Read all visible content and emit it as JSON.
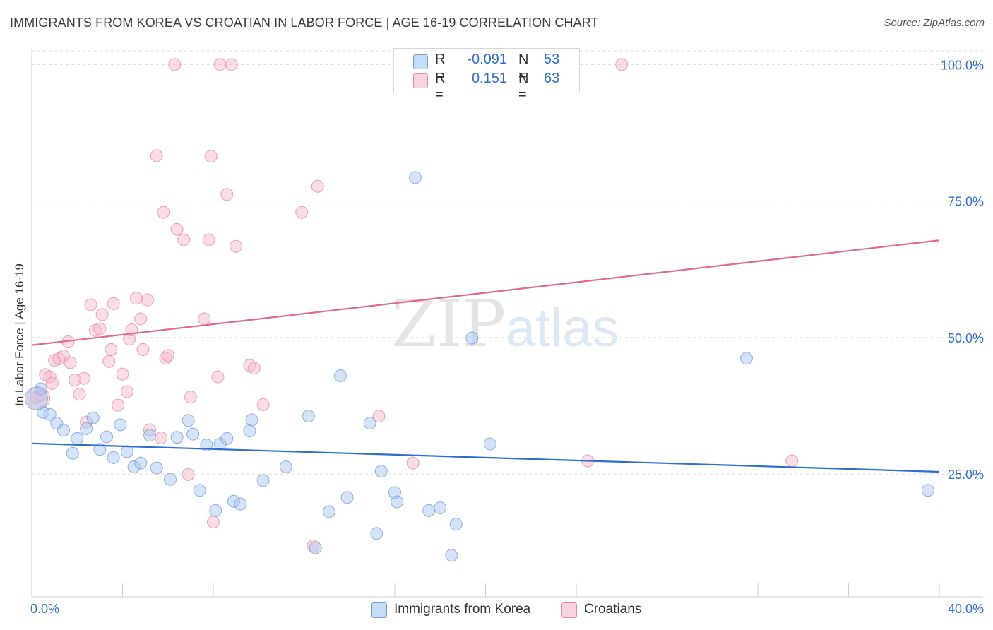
{
  "header": {
    "title": "IMMIGRANTS FROM KOREA VS CROATIAN IN LABOR FORCE | AGE 16-19 CORRELATION CHART",
    "source": "Source: ZipAtlas.com"
  },
  "watermark": {
    "part1": "ZIP",
    "part2": "atlas"
  },
  "stats": [
    {
      "r_label": "R =",
      "r_value": "-0.091",
      "n_label": "N =",
      "n_value": "53",
      "color": "#a9c8ef"
    },
    {
      "r_label": "R =",
      "r_value": "0.151",
      "n_label": "N =",
      "n_value": "63",
      "color": "#f5b9cb"
    }
  ],
  "legend": [
    {
      "label": "Immigrants from Korea",
      "color": "#a9c8ef"
    },
    {
      "label": "Croatians",
      "color": "#f5b9cb"
    }
  ],
  "chart_data": {
    "type": "scatter",
    "title": "IMMIGRANTS FROM KOREA VS CROATIAN IN LABOR FORCE | AGE 16-19 CORRELATION CHART",
    "xlabel": "",
    "ylabel": "In Labor Force | Age 16-19",
    "xlim": [
      0,
      40
    ],
    "ylim": [
      2.5,
      102.5
    ],
    "x_tick_labels": [
      "0.0%",
      "40.0%"
    ],
    "y_ticks": [
      25,
      50,
      75,
      100
    ],
    "y_tick_labels": [
      "25.0%",
      "50.0%",
      "75.0%",
      "100.0%"
    ],
    "grid": "horizontal dashed",
    "legend_position": "bottom",
    "colors": {
      "korea_fill": "#a9c8ef",
      "korea_stroke": "#6fa0dc",
      "korea_line": "#2c6fcf",
      "croatian_fill": "#f5b9cb",
      "croatian_stroke": "#e98aa7",
      "croatian_line": "#e2688f",
      "tick_text": "#2c6fcf"
    },
    "series": [
      {
        "name": "Immigrants from Korea",
        "trend": {
          "x": [
            0,
            40
          ],
          "y": [
            30.6,
            25.4
          ]
        },
        "points": [
          [
            0.4,
            40.6
          ],
          [
            0.5,
            36.3
          ],
          [
            0.8,
            35.9
          ],
          [
            1.1,
            34.3
          ],
          [
            1.4,
            33.0
          ],
          [
            1.8,
            28.8
          ],
          [
            2.0,
            31.5
          ],
          [
            2.4,
            33.3
          ],
          [
            2.7,
            35.3
          ],
          [
            3.0,
            29.5
          ],
          [
            3.3,
            31.8
          ],
          [
            3.6,
            28.0
          ],
          [
            3.9,
            34.0
          ],
          [
            4.2,
            29.1
          ],
          [
            4.5,
            26.3
          ],
          [
            4.8,
            27.0
          ],
          [
            5.2,
            32.1
          ],
          [
            5.5,
            26.1
          ],
          [
            6.1,
            24.0
          ],
          [
            6.4,
            31.7
          ],
          [
            6.9,
            34.8
          ],
          [
            7.1,
            32.3
          ],
          [
            7.4,
            22.0
          ],
          [
            7.7,
            30.3
          ],
          [
            8.1,
            18.3
          ],
          [
            8.3,
            30.5
          ],
          [
            8.6,
            31.5
          ],
          [
            8.9,
            20.0
          ],
          [
            9.2,
            19.5
          ],
          [
            9.6,
            32.9
          ],
          [
            9.7,
            34.9
          ],
          [
            10.2,
            23.8
          ],
          [
            11.2,
            26.3
          ],
          [
            12.2,
            35.6
          ],
          [
            12.5,
            11.5
          ],
          [
            13.1,
            18.1
          ],
          [
            13.6,
            43.0
          ],
          [
            13.9,
            20.7
          ],
          [
            14.9,
            34.3
          ],
          [
            15.2,
            14.1
          ],
          [
            15.4,
            25.5
          ],
          [
            16.0,
            21.6
          ],
          [
            16.1,
            19.9
          ],
          [
            16.9,
            79.3
          ],
          [
            17.5,
            18.3
          ],
          [
            18.0,
            18.8
          ],
          [
            18.5,
            10.1
          ],
          [
            18.7,
            15.8
          ],
          [
            19.4,
            49.9
          ],
          [
            20.2,
            30.5
          ],
          [
            31.5,
            46.2
          ],
          [
            39.5,
            22.0
          ],
          [
            0.2,
            38.8
          ]
        ]
      },
      {
        "name": "Croatians",
        "trend": {
          "x": [
            0,
            40
          ],
          "y": [
            48.6,
            67.8
          ]
        },
        "points": [
          [
            0.2,
            39.0
          ],
          [
            0.4,
            39.4
          ],
          [
            0.6,
            43.2
          ],
          [
            0.8,
            42.8
          ],
          [
            0.9,
            41.6
          ],
          [
            1.0,
            45.8
          ],
          [
            1.2,
            46.1
          ],
          [
            1.4,
            46.6
          ],
          [
            1.6,
            49.2
          ],
          [
            1.7,
            45.4
          ],
          [
            1.9,
            42.2
          ],
          [
            2.1,
            39.6
          ],
          [
            2.3,
            42.5
          ],
          [
            2.4,
            34.5
          ],
          [
            2.6,
            56.0
          ],
          [
            2.8,
            51.3
          ],
          [
            3.0,
            51.6
          ],
          [
            3.1,
            54.2
          ],
          [
            3.4,
            45.6
          ],
          [
            3.5,
            47.8
          ],
          [
            3.6,
            56.2
          ],
          [
            3.8,
            37.6
          ],
          [
            4.0,
            43.3
          ],
          [
            4.2,
            40.1
          ],
          [
            4.3,
            49.7
          ],
          [
            4.4,
            51.4
          ],
          [
            4.6,
            57.2
          ],
          [
            4.8,
            53.4
          ],
          [
            4.9,
            47.8
          ],
          [
            5.1,
            56.9
          ],
          [
            5.2,
            33.1
          ],
          [
            5.5,
            83.3
          ],
          [
            5.7,
            31.6
          ],
          [
            5.8,
            72.9
          ],
          [
            5.9,
            46.2
          ],
          [
            6.0,
            46.7
          ],
          [
            6.3,
            100.0
          ],
          [
            6.4,
            69.8
          ],
          [
            6.7,
            67.9
          ],
          [
            6.9,
            24.9
          ],
          [
            7.0,
            39.1
          ],
          [
            7.6,
            53.4
          ],
          [
            7.8,
            67.9
          ],
          [
            7.9,
            83.2
          ],
          [
            8.0,
            16.2
          ],
          [
            8.2,
            42.8
          ],
          [
            8.3,
            100.0
          ],
          [
            8.6,
            76.2
          ],
          [
            8.8,
            100.0
          ],
          [
            9.0,
            66.7
          ],
          [
            9.6,
            44.9
          ],
          [
            9.8,
            44.4
          ],
          [
            10.2,
            37.7
          ],
          [
            11.9,
            72.9
          ],
          [
            12.4,
            11.8
          ],
          [
            12.6,
            77.7
          ],
          [
            15.3,
            35.6
          ],
          [
            16.8,
            27.0
          ],
          [
            22.2,
            100.0
          ],
          [
            24.5,
            27.4
          ],
          [
            26.0,
            100.0
          ],
          [
            33.5,
            27.4
          ],
          [
            0.3,
            38.9
          ]
        ]
      }
    ]
  }
}
